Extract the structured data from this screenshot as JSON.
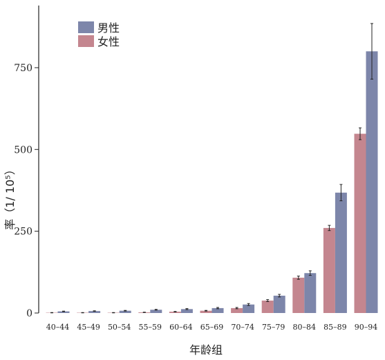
{
  "chart_data": {
    "type": "bar",
    "categories": [
      "40–44",
      "45–49",
      "50–54",
      "55–59",
      "60–64",
      "65–69",
      "70–74",
      "75–79",
      "80–84",
      "85–89",
      "90–94"
    ],
    "series": [
      {
        "name": "女性",
        "color": "#c4868f",
        "values": [
          1,
          1,
          1,
          2,
          4,
          7,
          15,
          38,
          108,
          260,
          548
        ],
        "errors": [
          0.5,
          0.5,
          0.5,
          0.6,
          0.8,
          1,
          2,
          3,
          5,
          8,
          18
        ]
      },
      {
        "name": "男性",
        "color": "#7d86aa",
        "values": [
          5,
          6,
          7,
          10,
          12,
          15,
          26,
          53,
          122,
          368,
          800
        ],
        "errors": [
          0.8,
          0.8,
          1,
          1.2,
          1.5,
          2,
          3,
          4,
          7,
          25,
          85
        ]
      }
    ],
    "xlabel": "年龄组",
    "ylabel": "率（1/ 10⁵）",
    "ylim": [
      0,
      940
    ],
    "yticks": [
      0,
      250,
      500,
      750
    ],
    "legend": {
      "position": "top-left",
      "order": [
        "男性",
        "女性"
      ]
    },
    "grid": false
  }
}
